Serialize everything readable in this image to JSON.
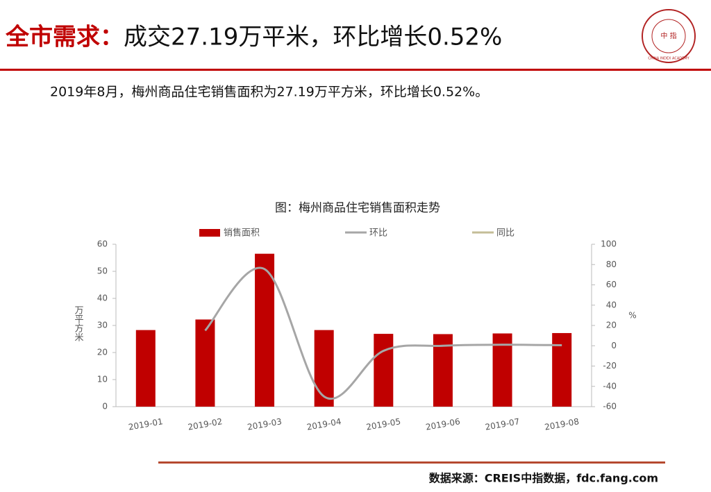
{
  "header": {
    "title_highlight": "全市需求：",
    "title_rest": "成交27.19万平米，环比增长0.52%",
    "logo_center": "中 指",
    "logo_ring": "CHINA INDEX ACADEMY"
  },
  "summary": "2019年8月，梅州商品住宅销售面积为27.19万平方米，环比增长0.52%。",
  "chart_data": {
    "type": "bar_line",
    "title": "图：梅州商品住宅销售面积走势",
    "categories": [
      "2019-01",
      "2019-02",
      "2019-03",
      "2019-04",
      "2019-05",
      "2019-06",
      "2019-07",
      "2019-08"
    ],
    "series": [
      {
        "name": "销售面积",
        "type": "bar",
        "color": "#c00000",
        "values": [
          28.3,
          32.2,
          56.5,
          28.3,
          26.9,
          26.8,
          27.05,
          27.19
        ]
      },
      {
        "name": "环比",
        "type": "line",
        "axis": "y2",
        "color": "#a6a6a6",
        "values": [
          null,
          15,
          75.5,
          -50,
          -5,
          0,
          1,
          0.52
        ]
      },
      {
        "name": "同比",
        "type": "line",
        "axis": "y2",
        "color": "#c4bd97",
        "values": [
          null,
          null,
          null,
          null,
          null,
          null,
          null,
          null
        ]
      }
    ],
    "ylabel": "万平方米",
    "y2label": "%",
    "ylim": [
      0,
      60
    ],
    "yticks": [
      0,
      10,
      20,
      30,
      40,
      50,
      60
    ],
    "y2lim": [
      -60,
      100
    ],
    "y2ticks": [
      -60,
      -40,
      -20,
      0,
      20,
      40,
      60,
      80,
      100
    ]
  },
  "source": "数据来源：CREIS中指数据，fdc.fang.com"
}
